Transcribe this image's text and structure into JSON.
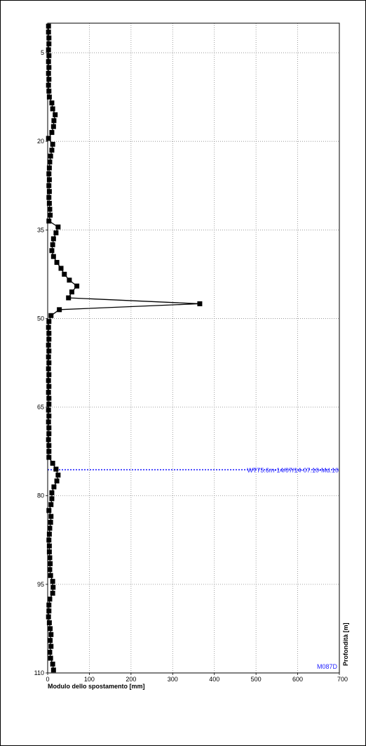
{
  "chart_data": {
    "type": "line",
    "xlabel": "Modulo dello spostamento [mm]",
    "ylabel": "Profondità [m]",
    "xlim": [
      0,
      700
    ],
    "ylim": [
      0,
      110
    ],
    "y_inverted": true,
    "x_ticks": [
      0,
      100,
      200,
      300,
      400,
      500,
      600,
      700
    ],
    "x_tick_labels": [
      "0",
      "100",
      "200",
      "300",
      "400",
      "500",
      "600",
      "700"
    ],
    "y_ticks": [
      5,
      20,
      35,
      50,
      65,
      80,
      95,
      110
    ],
    "y_tick_labels": [
      "5",
      "20",
      "35",
      "50",
      "65",
      "80",
      "95",
      "110"
    ],
    "grid": true,
    "grid_style": "dotted",
    "series": [
      {
        "marker": "square",
        "color": "#000000",
        "points": [
          [
            2,
            0.5
          ],
          [
            2,
            1.5
          ],
          [
            3,
            2.5
          ],
          [
            3,
            3.5
          ],
          [
            2,
            4.5
          ],
          [
            3,
            5.5
          ],
          [
            2,
            6.5
          ],
          [
            3,
            7.5
          ],
          [
            2,
            8.5
          ],
          [
            3,
            9.5
          ],
          [
            2,
            10.5
          ],
          [
            3,
            11.5
          ],
          [
            4,
            12.5
          ],
          [
            10,
            13.5
          ],
          [
            12,
            14.5
          ],
          [
            18,
            15.5
          ],
          [
            15,
            16.5
          ],
          [
            14,
            17.5
          ],
          [
            10,
            18.5
          ],
          [
            2,
            19.5
          ],
          [
            12,
            20.5
          ],
          [
            10,
            21.5
          ],
          [
            7,
            22.5
          ],
          [
            5,
            23.5
          ],
          [
            4,
            24.5
          ],
          [
            3,
            25.5
          ],
          [
            4,
            26.5
          ],
          [
            3,
            27.5
          ],
          [
            4,
            28.5
          ],
          [
            3,
            29.5
          ],
          [
            4,
            30.5
          ],
          [
            5,
            31.5
          ],
          [
            6,
            32.5
          ],
          [
            3,
            33.5
          ],
          [
            25,
            34.5
          ],
          [
            20,
            35.5
          ],
          [
            14,
            36.5
          ],
          [
            12,
            37.5
          ],
          [
            10,
            38.5
          ],
          [
            14,
            39.5
          ],
          [
            22,
            40.5
          ],
          [
            32,
            41.5
          ],
          [
            40,
            42.5
          ],
          [
            52,
            43.5
          ],
          [
            70,
            44.5
          ],
          [
            58,
            45.5
          ],
          [
            50,
            46.5
          ],
          [
            365,
            47.5
          ],
          [
            28,
            48.5
          ],
          [
            8,
            49.5
          ],
          [
            3,
            50.5
          ],
          [
            2,
            51.5
          ],
          [
            3,
            52.5
          ],
          [
            3,
            53.5
          ],
          [
            2,
            54.5
          ],
          [
            3,
            55.5
          ],
          [
            2,
            56.5
          ],
          [
            3,
            57.5
          ],
          [
            2,
            58.5
          ],
          [
            3,
            59.5
          ],
          [
            2,
            60.5
          ],
          [
            3,
            61.5
          ],
          [
            2,
            62.5
          ],
          [
            3,
            63.5
          ],
          [
            3,
            64.5
          ],
          [
            2,
            65.5
          ],
          [
            3,
            66.5
          ],
          [
            2,
            67.5
          ],
          [
            3,
            68.5
          ],
          [
            3,
            69.5
          ],
          [
            2,
            70.5
          ],
          [
            3,
            71.5
          ],
          [
            3,
            72.5
          ],
          [
            3,
            73.5
          ],
          [
            12,
            74.5
          ],
          [
            20,
            75.5
          ],
          [
            25,
            76.5
          ],
          [
            22,
            77.5
          ],
          [
            15,
            78.5
          ],
          [
            10,
            79.5
          ],
          [
            10,
            80.5
          ],
          [
            8,
            81.5
          ],
          [
            3,
            82.5
          ],
          [
            8,
            83.5
          ],
          [
            7,
            84.5
          ],
          [
            5,
            85.5
          ],
          [
            4,
            86.5
          ],
          [
            3,
            87.5
          ],
          [
            4,
            88.5
          ],
          [
            4,
            89.5
          ],
          [
            5,
            90.5
          ],
          [
            6,
            91.5
          ],
          [
            5,
            92.5
          ],
          [
            7,
            93.5
          ],
          [
            12,
            94.5
          ],
          [
            13,
            95.5
          ],
          [
            12,
            96.5
          ],
          [
            5,
            97.5
          ],
          [
            3,
            98.5
          ],
          [
            3,
            99.5
          ],
          [
            2,
            100.5
          ],
          [
            4,
            101.5
          ],
          [
            6,
            102.5
          ],
          [
            8,
            103.5
          ],
          [
            6,
            104.5
          ],
          [
            8,
            105.5
          ],
          [
            5,
            106.5
          ],
          [
            7,
            107.5
          ],
          [
            12,
            108.5
          ],
          [
            14,
            109.5
          ]
        ]
      }
    ],
    "annotations": [
      {
        "type": "hline",
        "y": 75.6,
        "color": "#2222ff",
        "style": "dotted",
        "label": "WT75.6m-14/07/14-07.10-Md.10"
      }
    ],
    "footer_label": "M087D",
    "footer_label_color": "#2222ff"
  }
}
